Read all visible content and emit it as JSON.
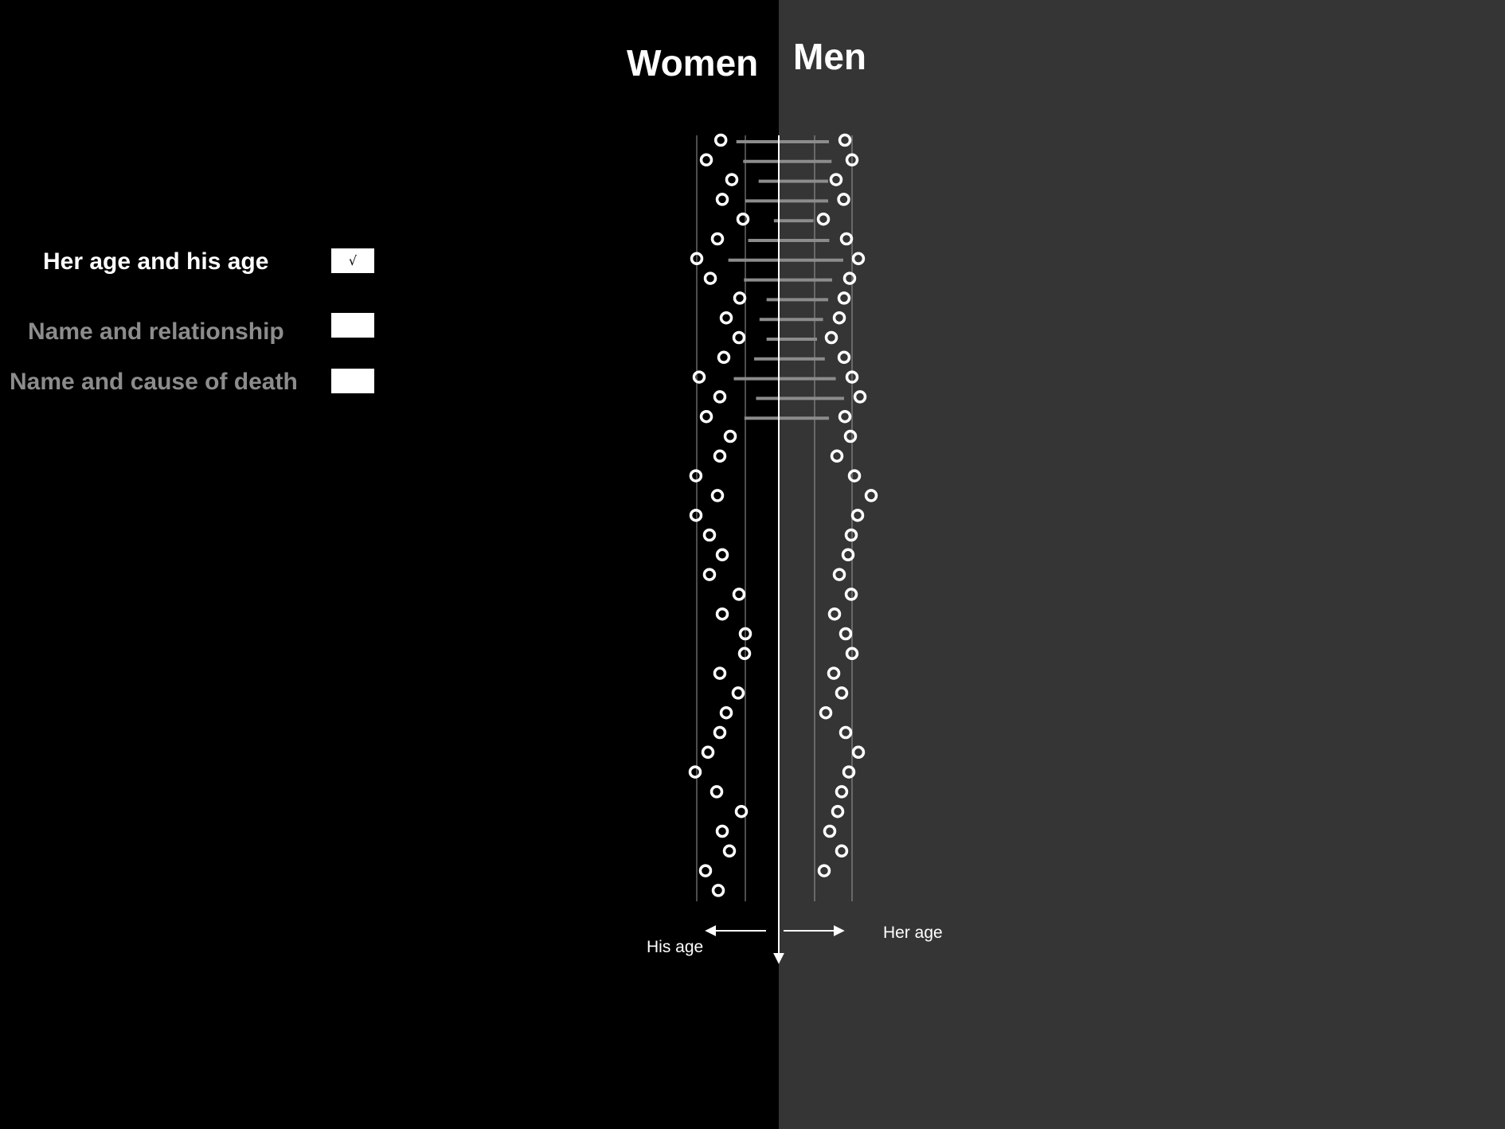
{
  "headings": {
    "women": "Women",
    "men": "Men"
  },
  "options": [
    {
      "label": "Her age and his age",
      "checked": true,
      "mark": "√"
    },
    {
      "label": "Name and relationship",
      "checked": false,
      "mark": ""
    },
    {
      "label": "Name and cause of death",
      "checked": false,
      "mark": ""
    }
  ],
  "colors": {
    "left_bg": "#000000",
    "right_bg": "#353535",
    "marker": "#ffffff",
    "connector": "#8c8c8c",
    "guide": "#9a9a9a"
  },
  "chart_data": {
    "type": "scatter",
    "xlabel_women_side": "His age",
    "xlabel_men_side": "Her age",
    "women_points": [
      {
        "x": 0.505,
        "y": 1
      },
      {
        "x": 0.803,
        "y": 2
      },
      {
        "x": 0.279,
        "y": 3
      },
      {
        "x": 0.475,
        "y": 4
      },
      {
        "x": 0.049,
        "y": 5
      },
      {
        "x": 0.574,
        "y": 6
      },
      {
        "x": 1.0,
        "y": 7
      },
      {
        "x": 0.721,
        "y": 8
      },
      {
        "x": 0.115,
        "y": 9
      },
      {
        "x": 0.393,
        "y": 10
      },
      {
        "x": 0.131,
        "y": 11
      },
      {
        "x": 0.443,
        "y": 12
      },
      {
        "x": 0.951,
        "y": 13
      },
      {
        "x": 0.525,
        "y": 14
      },
      {
        "x": 0.803,
        "y": 15
      },
      {
        "x": 0.311,
        "y": 16
      },
      {
        "x": 0.525,
        "y": 17
      },
      {
        "x": 1.018,
        "y": 18
      },
      {
        "x": 0.574,
        "y": 19
      },
      {
        "x": 1.016,
        "y": 20
      },
      {
        "x": 0.738,
        "y": 21
      },
      {
        "x": 0.475,
        "y": 22
      },
      {
        "x": 0.738,
        "y": 23
      },
      {
        "x": 0.131,
        "y": 24
      },
      {
        "x": 0.475,
        "y": 25
      },
      {
        "x": 0.0,
        "y": 26
      },
      {
        "x": 0.016,
        "y": 27
      },
      {
        "x": 0.525,
        "y": 28
      },
      {
        "x": 0.148,
        "y": 29
      },
      {
        "x": 0.393,
        "y": 30
      },
      {
        "x": 0.525,
        "y": 31
      },
      {
        "x": 0.77,
        "y": 32
      },
      {
        "x": 1.033,
        "y": 33
      },
      {
        "x": 0.59,
        "y": 34
      },
      {
        "x": 0.082,
        "y": 35
      },
      {
        "x": 0.475,
        "y": 36
      },
      {
        "x": 0.328,
        "y": 37
      },
      {
        "x": 0.82,
        "y": 38
      },
      {
        "x": 0.557,
        "y": 39
      }
    ],
    "men_points": [
      {
        "x": 0.809,
        "y": 1
      },
      {
        "x": 1.0,
        "y": 2
      },
      {
        "x": 0.574,
        "y": 3
      },
      {
        "x": 0.777,
        "y": 4
      },
      {
        "x": 0.234,
        "y": 5
      },
      {
        "x": 0.851,
        "y": 6
      },
      {
        "x": 1.17,
        "y": 7
      },
      {
        "x": 0.936,
        "y": 8
      },
      {
        "x": 0.787,
        "y": 9
      },
      {
        "x": 0.66,
        "y": 10
      },
      {
        "x": 0.447,
        "y": 11
      },
      {
        "x": 0.787,
        "y": 12
      },
      {
        "x": 1.0,
        "y": 13
      },
      {
        "x": 1.213,
        "y": 14
      },
      {
        "x": 0.809,
        "y": 15
      },
      {
        "x": 0.957,
        "y": 16
      },
      {
        "x": 0.596,
        "y": 17
      },
      {
        "x": 1.064,
        "y": 18
      },
      {
        "x": 1.511,
        "y": 19
      },
      {
        "x": 1.149,
        "y": 20
      },
      {
        "x": 0.979,
        "y": 21
      },
      {
        "x": 0.894,
        "y": 22
      },
      {
        "x": 0.66,
        "y": 23
      },
      {
        "x": 0.979,
        "y": 24
      },
      {
        "x": 0.532,
        "y": 25
      },
      {
        "x": 0.83,
        "y": 26
      },
      {
        "x": 1.0,
        "y": 27
      },
      {
        "x": 0.511,
        "y": 28
      },
      {
        "x": 0.723,
        "y": 29
      },
      {
        "x": 0.298,
        "y": 30
      },
      {
        "x": 0.83,
        "y": 31
      },
      {
        "x": 1.17,
        "y": 32
      },
      {
        "x": 0.915,
        "y": 33
      },
      {
        "x": 0.723,
        "y": 34
      },
      {
        "x": 0.617,
        "y": 35
      },
      {
        "x": 0.404,
        "y": 36
      },
      {
        "x": 0.723,
        "y": 37
      },
      {
        "x": 0.255,
        "y": 38
      }
    ],
    "connectors": [
      {
        "from": -0.873,
        "to": 0.574
      },
      {
        "from": -0.733,
        "to": 0.645
      },
      {
        "from": -0.415,
        "to": 0.553
      },
      {
        "from": -0.682,
        "to": 0.553
      },
      {
        "from": -0.101,
        "to": 0.162
      },
      {
        "from": -0.631,
        "to": 0.583
      },
      {
        "from": -1.039,
        "to": 0.957
      },
      {
        "from": -0.717,
        "to": 0.66
      },
      {
        "from": -0.251,
        "to": 0.553
      },
      {
        "from": -0.397,
        "to": 0.417
      },
      {
        "from": -0.251,
        "to": 0.255
      },
      {
        "from": -0.508,
        "to": 0.464
      },
      {
        "from": -0.926,
        "to": 0.757
      },
      {
        "from": -0.468,
        "to": 0.979
      },
      {
        "from": -0.708,
        "to": 0.574
      }
    ]
  }
}
